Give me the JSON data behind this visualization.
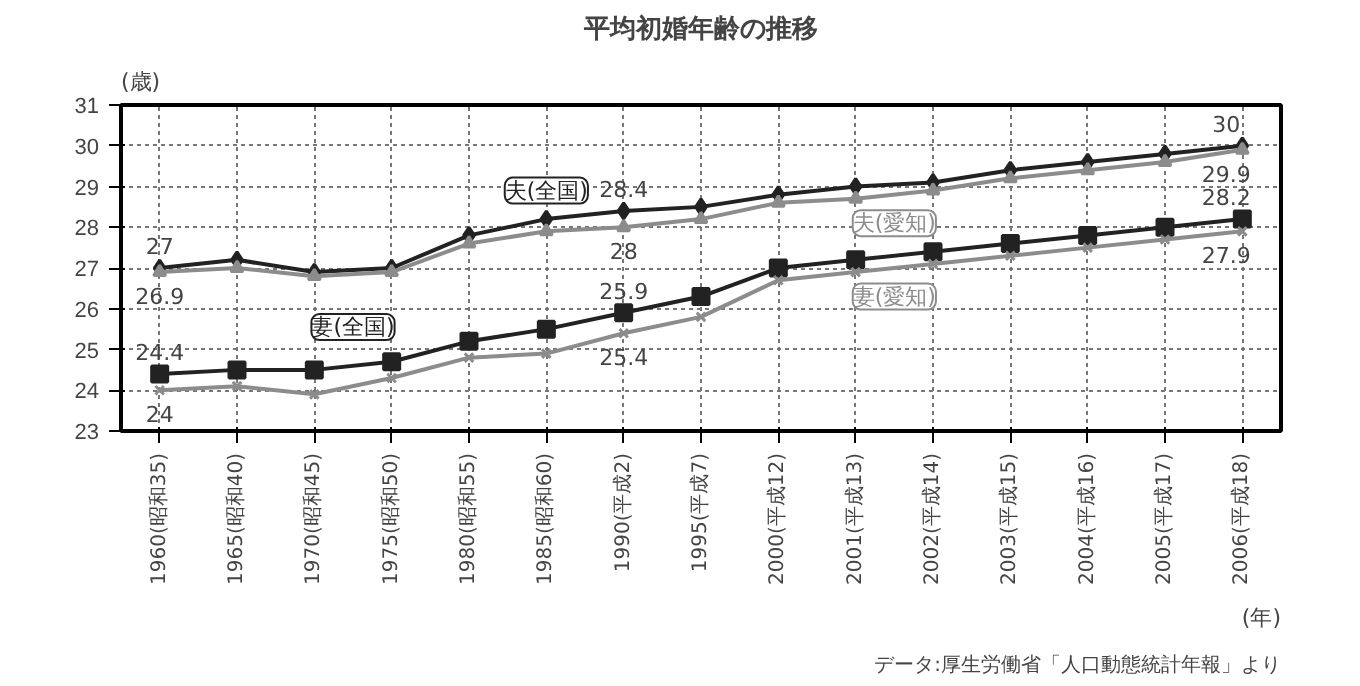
{
  "chart_data": {
    "type": "line",
    "title": "平均初婚年齢の推移",
    "ylabel": "(歳)",
    "xlabel": "(年)",
    "categories": [
      "1960(昭和35)",
      "1965(昭和40)",
      "1970(昭和45)",
      "1975(昭和50)",
      "1980(昭和55)",
      "1985(昭和60)",
      "1990(平成2)",
      "1995(平成7)",
      "2000(平成12)",
      "2001(平成13)",
      "2002(平成14)",
      "2003(平成15)",
      "2004(平成16)",
      "2005(平成17)",
      "2006(平成18)"
    ],
    "series": [
      {
        "name": "夫(全国)",
        "color": "#222222",
        "marker": "diamond",
        "values": [
          27,
          27.2,
          26.9,
          27.0,
          27.8,
          28.2,
          28.4,
          28.5,
          28.8,
          29.0,
          29.1,
          29.4,
          29.6,
          29.8,
          30
        ],
        "value_labels": [
          "27",
          null,
          null,
          null,
          null,
          null,
          "28.4",
          null,
          null,
          null,
          null,
          null,
          null,
          null,
          "30"
        ]
      },
      {
        "name": "夫(愛知)",
        "color": "#8c8c8c",
        "marker": "triangle",
        "values": [
          26.9,
          27.0,
          26.8,
          26.9,
          27.6,
          27.9,
          28,
          28.2,
          28.6,
          28.7,
          28.9,
          29.2,
          29.4,
          29.6,
          29.9
        ],
        "value_labels": [
          "26.9",
          null,
          null,
          null,
          null,
          null,
          "28",
          null,
          null,
          null,
          null,
          null,
          null,
          null,
          "29.9"
        ]
      },
      {
        "name": "妻(全国)",
        "color": "#222222",
        "marker": "square",
        "values": [
          24.4,
          24.5,
          24.5,
          24.7,
          25.2,
          25.5,
          25.9,
          26.3,
          27.0,
          27.2,
          27.4,
          27.6,
          27.8,
          28.0,
          28.2
        ],
        "value_labels": [
          "24.4",
          null,
          null,
          null,
          null,
          null,
          "25.9",
          null,
          null,
          null,
          null,
          null,
          null,
          null,
          "28.2"
        ]
      },
      {
        "name": "妻(愛知)",
        "color": "#8c8c8c",
        "marker": "x",
        "values": [
          24,
          24.1,
          23.9,
          24.3,
          24.8,
          24.9,
          25.4,
          25.8,
          26.7,
          26.9,
          27.1,
          27.3,
          27.5,
          27.7,
          27.9
        ],
        "value_labels": [
          "24",
          null,
          null,
          null,
          null,
          null,
          "25.4",
          null,
          null,
          null,
          null,
          null,
          null,
          null,
          "27.9"
        ]
      }
    ],
    "ylim": [
      23,
      31
    ],
    "yticks": [
      23,
      24,
      25,
      26,
      27,
      28,
      29,
      30,
      31
    ],
    "grid": true,
    "line_style": "solid",
    "annotations": [
      "データ:厚生労働省「人口動態統計年報」より"
    ]
  }
}
